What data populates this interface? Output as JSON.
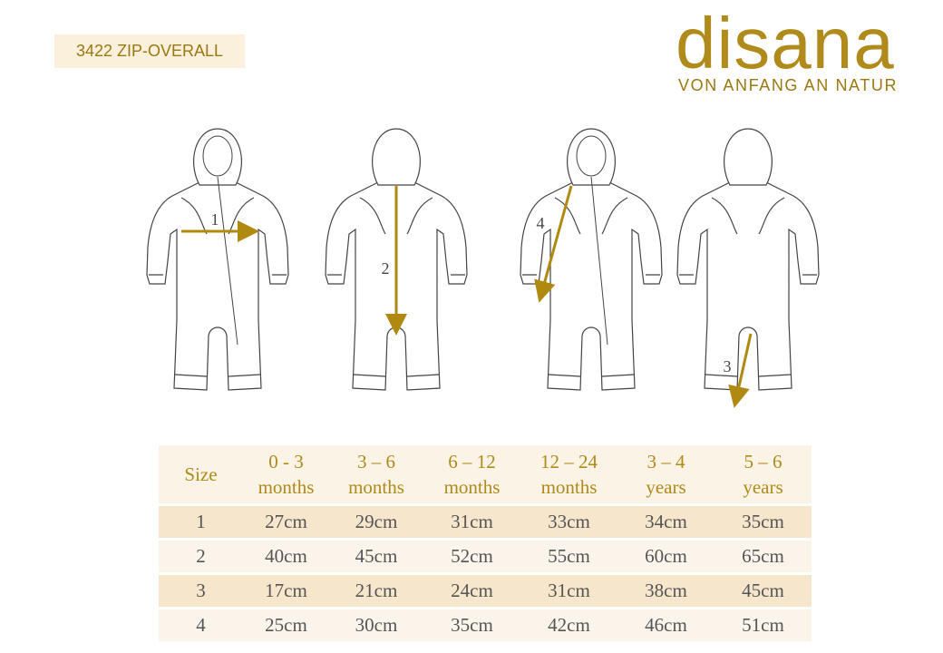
{
  "header": {
    "label": "3422 ZIP-OVERALL"
  },
  "logo": {
    "name": "disana",
    "tagline": "VON ANFANG AN NATUR"
  },
  "measurements": {
    "labels": [
      "1",
      "2",
      "4",
      "3"
    ]
  },
  "table": {
    "header": [
      [
        "Size"
      ],
      [
        "0 - 3",
        "months"
      ],
      [
        "3 – 6",
        "months"
      ],
      [
        "6 – 12",
        "months"
      ],
      [
        "12 – 24",
        "months"
      ],
      [
        "3 – 4",
        "years"
      ],
      [
        "5 – 6",
        "years"
      ]
    ],
    "rows": [
      [
        "1",
        "27cm",
        "29cm",
        "31cm",
        "33cm",
        "34cm",
        "35cm"
      ],
      [
        "2",
        "40cm",
        "45cm",
        "52cm",
        "55cm",
        "60cm",
        "65cm"
      ],
      [
        "3",
        "17cm",
        "21cm",
        "24cm",
        "31cm",
        "38cm",
        "45cm"
      ],
      [
        "4",
        "25cm",
        "30cm",
        "35cm",
        "42cm",
        "46cm",
        "51cm"
      ]
    ]
  }
}
